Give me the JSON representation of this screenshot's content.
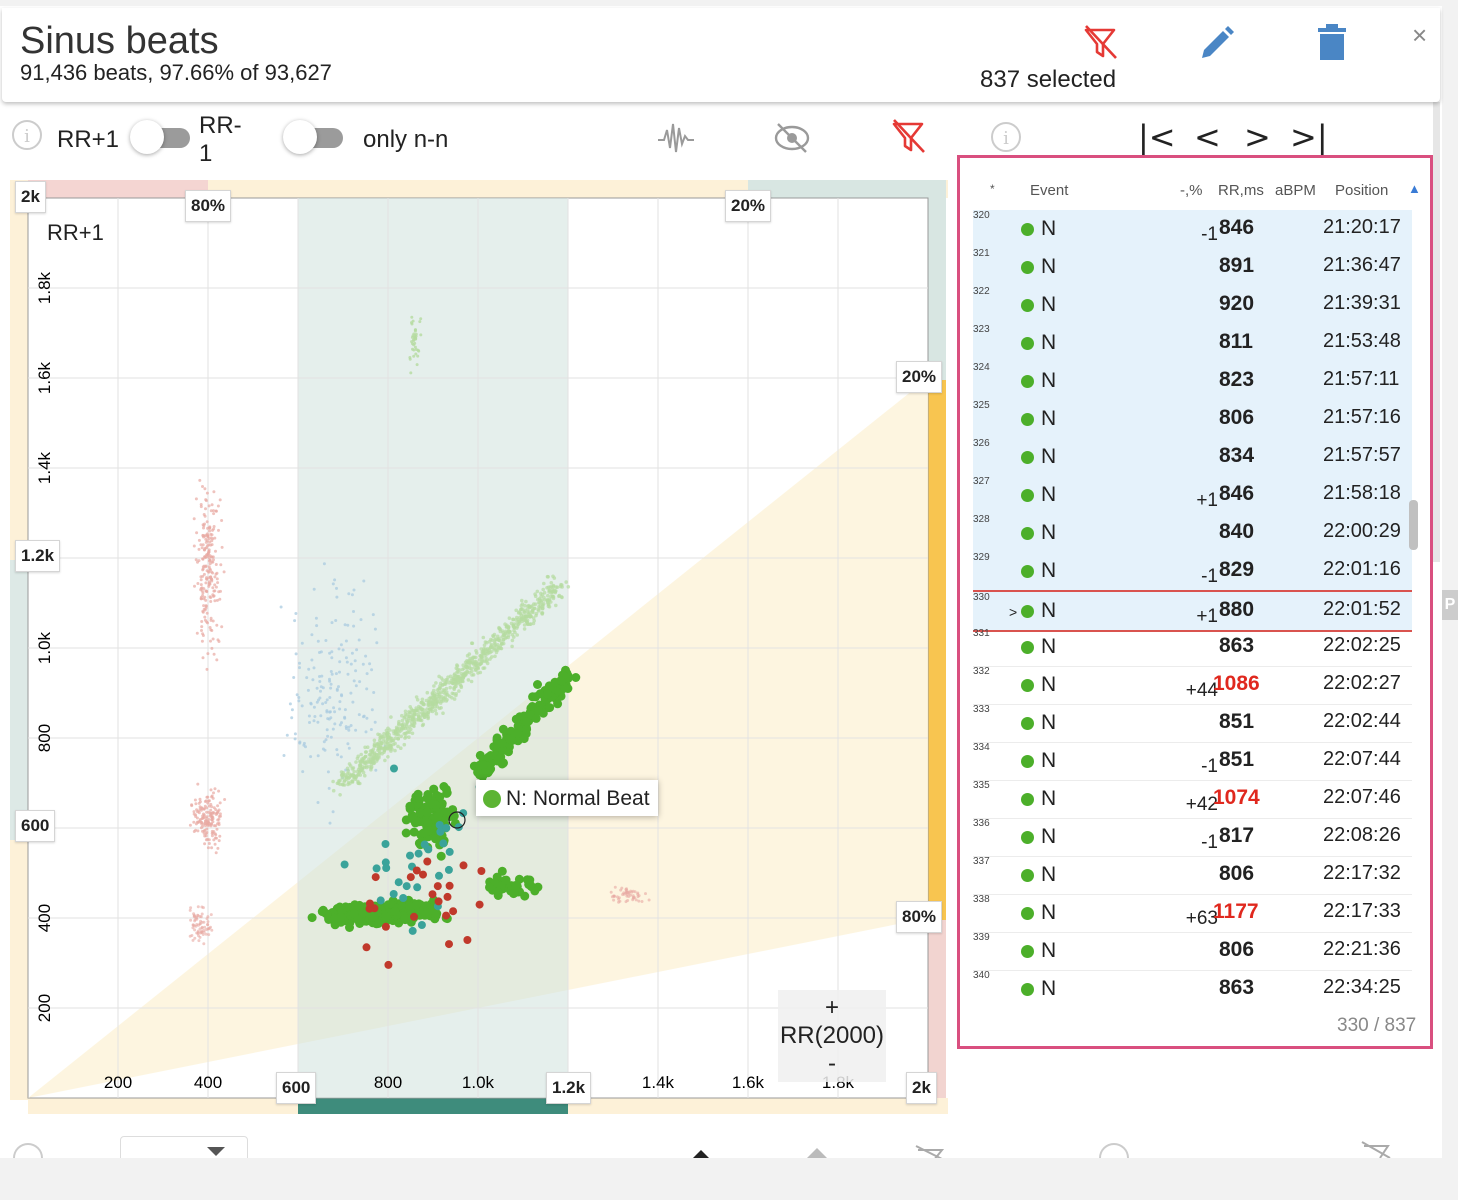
{
  "header": {
    "title": "Sinus beats",
    "subtitle": "91,436 beats, 97.66% of 93,627",
    "selected": "837 selected",
    "icons": [
      "filter-off-icon",
      "pencil-icon",
      "trash-icon",
      "close-icon"
    ],
    "close": "×"
  },
  "toolbar": {
    "rr_plus_1": "RR+1",
    "rr_minus_1": "RR-1",
    "only_nn": "only n-n",
    "toggle_rr": false,
    "toggle_nn": false,
    "icons": [
      "waveform-icon",
      "hide-icon",
      "filter-off-icon"
    ],
    "info": "i"
  },
  "chart": {
    "yaxis_title": "RR+1",
    "x_ticks": [
      "200",
      "400",
      "800",
      "1.0k",
      "1.4k",
      "1.6k",
      "1.8k"
    ],
    "y_ticks": [
      "200",
      "400",
      "800",
      "1.0k",
      "1.4k",
      "1.6k",
      "1.8k"
    ],
    "tags": {
      "y_top": "2k",
      "y_1200": "1.2k",
      "y_600": "600",
      "x_600": "600",
      "x_1200": "1.2k",
      "x_2k": "2k",
      "top_80": "80%",
      "top_20": "20%",
      "right_20": "20%",
      "right_80": "80%"
    },
    "tooltip": "N: Normal Beat",
    "rr_box": {
      "plus": "+",
      "label": "RR(2000)",
      "minus": "-"
    }
  },
  "chart_data": {
    "type": "scatter",
    "xlabel": "",
    "ylabel": "RR+1",
    "xlim": [
      0,
      2000
    ],
    "ylim": [
      0,
      2000
    ],
    "series": [
      {
        "name": "N: Normal Beat",
        "color": "#5cb433"
      }
    ]
  },
  "nav": {
    "first": "|<",
    "prev": "<",
    "next": ">",
    "last": ">|"
  },
  "table": {
    "headers": {
      "star": "*",
      "event": "Event",
      "pct": "-,%",
      "rr": "RR,ms",
      "abpm": "aBPM",
      "position": "Position"
    },
    "rows": [
      {
        "idx": "320",
        "ev": "N",
        "pct": "-1",
        "rr": "846",
        "pos": "21:20:17",
        "sel": true,
        "red": false,
        "cur": false
      },
      {
        "idx": "321",
        "ev": "N",
        "pct": "",
        "rr": "891",
        "pos": "21:36:47",
        "sel": true,
        "red": false,
        "cur": false
      },
      {
        "idx": "322",
        "ev": "N",
        "pct": "",
        "rr": "920",
        "pos": "21:39:31",
        "sel": true,
        "red": false,
        "cur": false
      },
      {
        "idx": "323",
        "ev": "N",
        "pct": "",
        "rr": "811",
        "pos": "21:53:48",
        "sel": true,
        "red": false,
        "cur": false
      },
      {
        "idx": "324",
        "ev": "N",
        "pct": "",
        "rr": "823",
        "pos": "21:57:11",
        "sel": true,
        "red": false,
        "cur": false
      },
      {
        "idx": "325",
        "ev": "N",
        "pct": "",
        "rr": "806",
        "pos": "21:57:16",
        "sel": true,
        "red": false,
        "cur": false
      },
      {
        "idx": "326",
        "ev": "N",
        "pct": "",
        "rr": "834",
        "pos": "21:57:57",
        "sel": true,
        "red": false,
        "cur": false
      },
      {
        "idx": "327",
        "ev": "N",
        "pct": "+1",
        "rr": "846",
        "pos": "21:58:18",
        "sel": true,
        "red": false,
        "cur": false
      },
      {
        "idx": "328",
        "ev": "N",
        "pct": "",
        "rr": "840",
        "pos": "22:00:29",
        "sel": true,
        "red": false,
        "cur": false
      },
      {
        "idx": "329",
        "ev": "N",
        "pct": "-1",
        "rr": "829",
        "pos": "22:01:16",
        "sel": true,
        "red": false,
        "cur": false
      },
      {
        "idx": "330",
        "ev": "N",
        "pct": "+1",
        "rr": "880",
        "pos": "22:01:52",
        "sel": true,
        "red": false,
        "cur": true
      },
      {
        "idx": "331",
        "ev": "N",
        "pct": "",
        "rr": "863",
        "pos": "22:02:25",
        "sel": false,
        "red": false,
        "cur": false
      },
      {
        "idx": "332",
        "ev": "N",
        "pct": "+44",
        "rr": "1086",
        "pos": "22:02:27",
        "sel": false,
        "red": true,
        "cur": false
      },
      {
        "idx": "333",
        "ev": "N",
        "pct": "",
        "rr": "851",
        "pos": "22:02:44",
        "sel": false,
        "red": false,
        "cur": false
      },
      {
        "idx": "334",
        "ev": "N",
        "pct": "-1",
        "rr": "851",
        "pos": "22:07:44",
        "sel": false,
        "red": false,
        "cur": false
      },
      {
        "idx": "335",
        "ev": "N",
        "pct": "+42",
        "rr": "1074",
        "pos": "22:07:46",
        "sel": false,
        "red": true,
        "cur": false
      },
      {
        "idx": "336",
        "ev": "N",
        "pct": "-1",
        "rr": "817",
        "pos": "22:08:26",
        "sel": false,
        "red": false,
        "cur": false
      },
      {
        "idx": "337",
        "ev": "N",
        "pct": "",
        "rr": "806",
        "pos": "22:17:32",
        "sel": false,
        "red": false,
        "cur": false
      },
      {
        "idx": "338",
        "ev": "N",
        "pct": "+63",
        "rr": "1177",
        "pos": "22:17:33",
        "sel": false,
        "red": true,
        "cur": false
      },
      {
        "idx": "339",
        "ev": "N",
        "pct": "",
        "rr": "806",
        "pos": "22:21:36",
        "sel": false,
        "red": false,
        "cur": false
      },
      {
        "idx": "340",
        "ev": "N",
        "pct": "",
        "rr": "863",
        "pos": "22:34:25",
        "sel": false,
        "red": false,
        "cur": false
      }
    ],
    "current_marker": ">",
    "pager": "330 / 837"
  },
  "side_tab": "P"
}
